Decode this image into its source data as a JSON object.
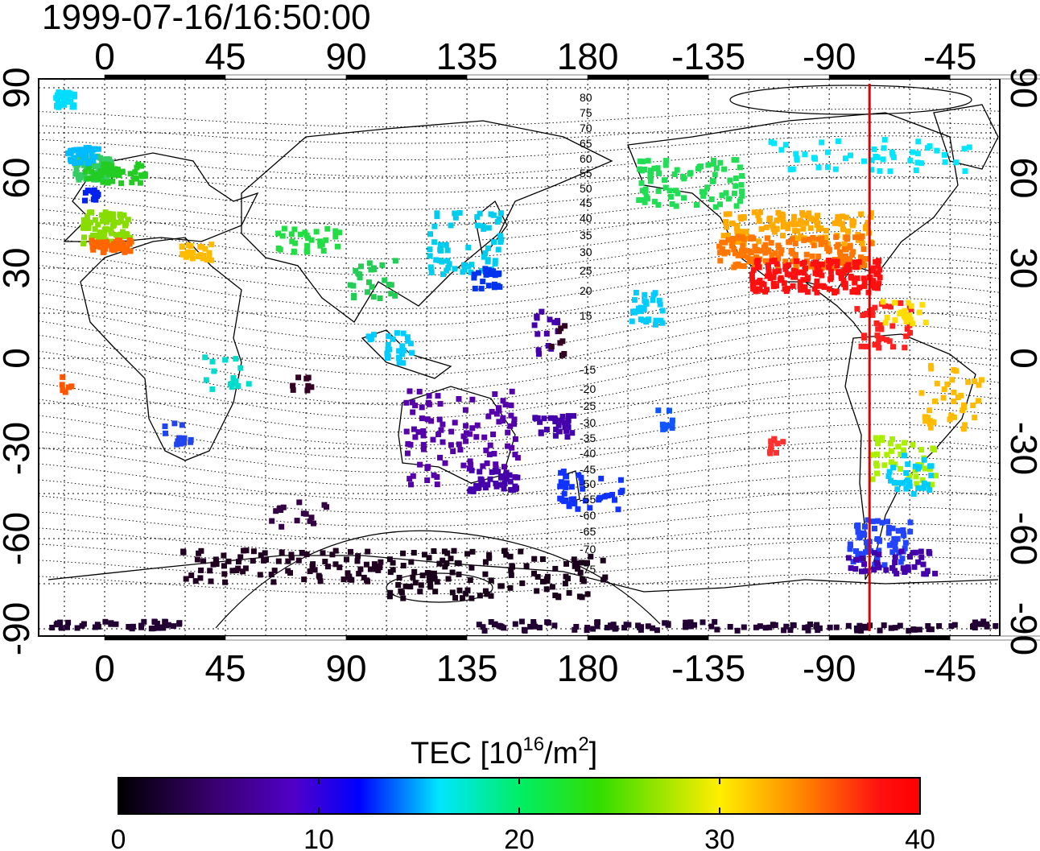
{
  "timestamp": "1999-07-16/16:50:00",
  "map": {
    "lon_ticks": [
      "0",
      "45",
      "90",
      "135",
      "180",
      "-135",
      "-90",
      "-45"
    ],
    "lat_ticks_left": [
      "90",
      "60",
      "30",
      "0",
      "-30",
      "-60",
      "-90"
    ],
    "lat_ticks_right": [
      "90",
      "60",
      "30",
      "0",
      "-30",
      "-60",
      "-90"
    ],
    "magnetic_lat_labels": [
      "80",
      "75",
      "70",
      "65",
      "60",
      "55",
      "50",
      "45",
      "40",
      "35",
      "30",
      "25",
      "20",
      "15",
      "-15",
      "-20",
      "-25",
      "-30",
      "-35",
      "-40",
      "-45",
      "-50",
      "-55",
      "-60",
      "-65",
      "-70",
      "-75"
    ],
    "marker_longitude": -75,
    "marker_color": "#e00000"
  },
  "colorbar": {
    "title_prefix": "TEC  [10",
    "title_sup1": "16",
    "title_mid": "/m",
    "title_sup2": "2",
    "title_suffix": "]",
    "tick_labels": [
      "0",
      "10",
      "20",
      "30",
      "40"
    ],
    "min": 0,
    "max": 40
  }
}
